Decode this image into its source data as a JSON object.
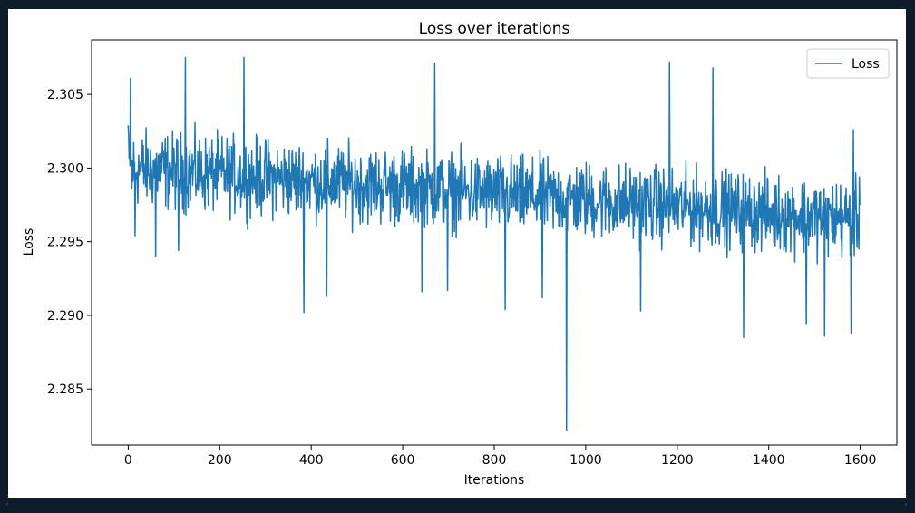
{
  "chart_data": {
    "type": "line",
    "title": "Loss over iterations",
    "xlabel": "Iterations",
    "ylabel": "Loss",
    "xlim": [
      -80,
      1680
    ],
    "ylim": [
      2.2812,
      2.3087
    ],
    "xticks": [
      0,
      200,
      400,
      600,
      800,
      1000,
      1200,
      1400,
      1600
    ],
    "xtick_labels": [
      "0",
      "200",
      "400",
      "600",
      "800",
      "1000",
      "1200",
      "1400",
      "1600"
    ],
    "yticks": [
      2.285,
      2.29,
      2.295,
      2.3,
      2.305
    ],
    "ytick_labels": [
      "2.285",
      "2.290",
      "2.295",
      "2.300",
      "2.305"
    ],
    "grid": false,
    "legend_position": "top-right",
    "series": [
      {
        "name": "Loss",
        "color": "#1f77b4",
        "n_points": 1600,
        "x_range": [
          0,
          1599
        ],
        "trend_start": 2.3,
        "trend_end": 2.2965,
        "noise_amplitude": 0.0022,
        "notable_points": [
          {
            "x": 0,
            "y": 2.3029
          },
          {
            "x": 5,
            "y": 2.3061
          },
          {
            "x": 8,
            "y": 2.2986
          },
          {
            "x": 15,
            "y": 2.2954
          },
          {
            "x": 60,
            "y": 2.294
          },
          {
            "x": 110,
            "y": 2.2944
          },
          {
            "x": 125,
            "y": 2.3075
          },
          {
            "x": 253,
            "y": 2.3075
          },
          {
            "x": 384,
            "y": 2.2902
          },
          {
            "x": 434,
            "y": 2.2913
          },
          {
            "x": 670,
            "y": 2.3071
          },
          {
            "x": 642,
            "y": 2.2916
          },
          {
            "x": 698,
            "y": 2.2917
          },
          {
            "x": 824,
            "y": 2.2904
          },
          {
            "x": 905,
            "y": 2.2912
          },
          {
            "x": 958,
            "y": 2.2822
          },
          {
            "x": 1120,
            "y": 2.2903
          },
          {
            "x": 1183,
            "y": 2.3072
          },
          {
            "x": 1278,
            "y": 2.3068
          },
          {
            "x": 1345,
            "y": 2.2885
          },
          {
            "x": 1482,
            "y": 2.2894
          },
          {
            "x": 1522,
            "y": 2.2886
          },
          {
            "x": 1580,
            "y": 2.2888
          },
          {
            "x": 1585,
            "y": 2.3026
          },
          {
            "x": 1599,
            "y": 2.2975
          }
        ]
      }
    ]
  }
}
